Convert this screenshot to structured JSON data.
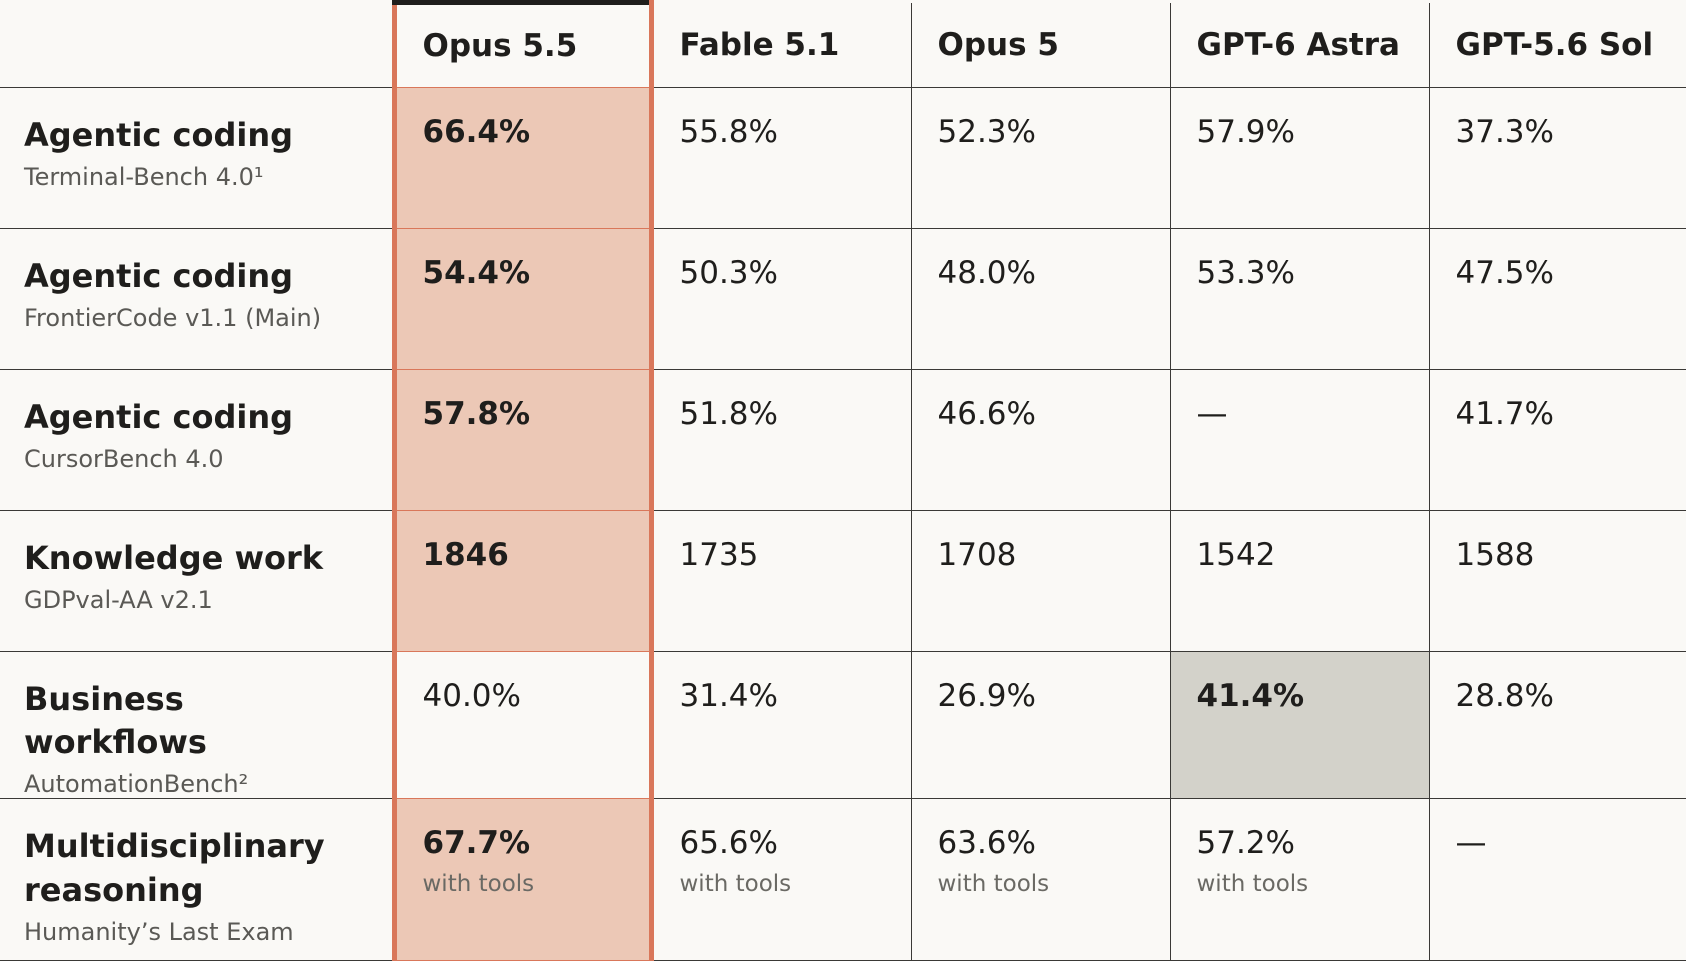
{
  "table": {
    "columns": [
      "Opus 5.5",
      "Fable 5.1",
      "Opus 5",
      "GPT-6 Astra",
      "GPT-5.6 Sol"
    ],
    "frame_column": 0,
    "frame_color": "#d9775a",
    "rows": [
      {
        "category": "Agentic coding",
        "benchmark": "Terminal-Bench 4.0¹",
        "cells": [
          {
            "value": "66.4%",
            "fill": "#ecc8b6"
          },
          {
            "value": "55.8%"
          },
          {
            "value": "52.3%"
          },
          {
            "value": "57.9%"
          },
          {
            "value": "37.3%"
          }
        ]
      },
      {
        "category": "Agentic coding",
        "benchmark": "FrontierCode v1.1 (Main)",
        "cells": [
          {
            "value": "54.4%",
            "fill": "#ecc8b6"
          },
          {
            "value": "50.3%"
          },
          {
            "value": "48.0%"
          },
          {
            "value": "53.3%"
          },
          {
            "value": "47.5%"
          }
        ]
      },
      {
        "category": "Agentic coding",
        "benchmark": "CursorBench 4.0",
        "cells": [
          {
            "value": "57.8%",
            "fill": "#ecc8b6"
          },
          {
            "value": "51.8%"
          },
          {
            "value": "46.6%"
          },
          {
            "value": "—"
          },
          {
            "value": "41.7%"
          }
        ]
      },
      {
        "category": "Knowledge work",
        "benchmark": "GDPval-AA v2.1",
        "cells": [
          {
            "value": "1846",
            "fill": "#ecc8b6"
          },
          {
            "value": "1735"
          },
          {
            "value": "1708"
          },
          {
            "value": "1542"
          },
          {
            "value": "1588"
          }
        ]
      },
      {
        "category": "Business workflows",
        "benchmark": "AutomationBench²",
        "cells": [
          {
            "value": "40.0%"
          },
          {
            "value": "31.4%"
          },
          {
            "value": "26.9%"
          },
          {
            "value": "41.4%",
            "fill": "#d3d2ca"
          },
          {
            "value": "28.8%"
          }
        ]
      },
      {
        "category": "Multidisciplinary reasoning",
        "benchmark": "Humanity’s Last Exam",
        "cells": [
          {
            "value": "67.7%",
            "note": "with tools",
            "fill": "#ecc8b6"
          },
          {
            "value": "65.6%",
            "note": "with tools"
          },
          {
            "value": "63.6%",
            "note": "with tools"
          },
          {
            "value": "57.2%",
            "note": "with tools"
          },
          {
            "value": "—"
          }
        ]
      }
    ]
  }
}
